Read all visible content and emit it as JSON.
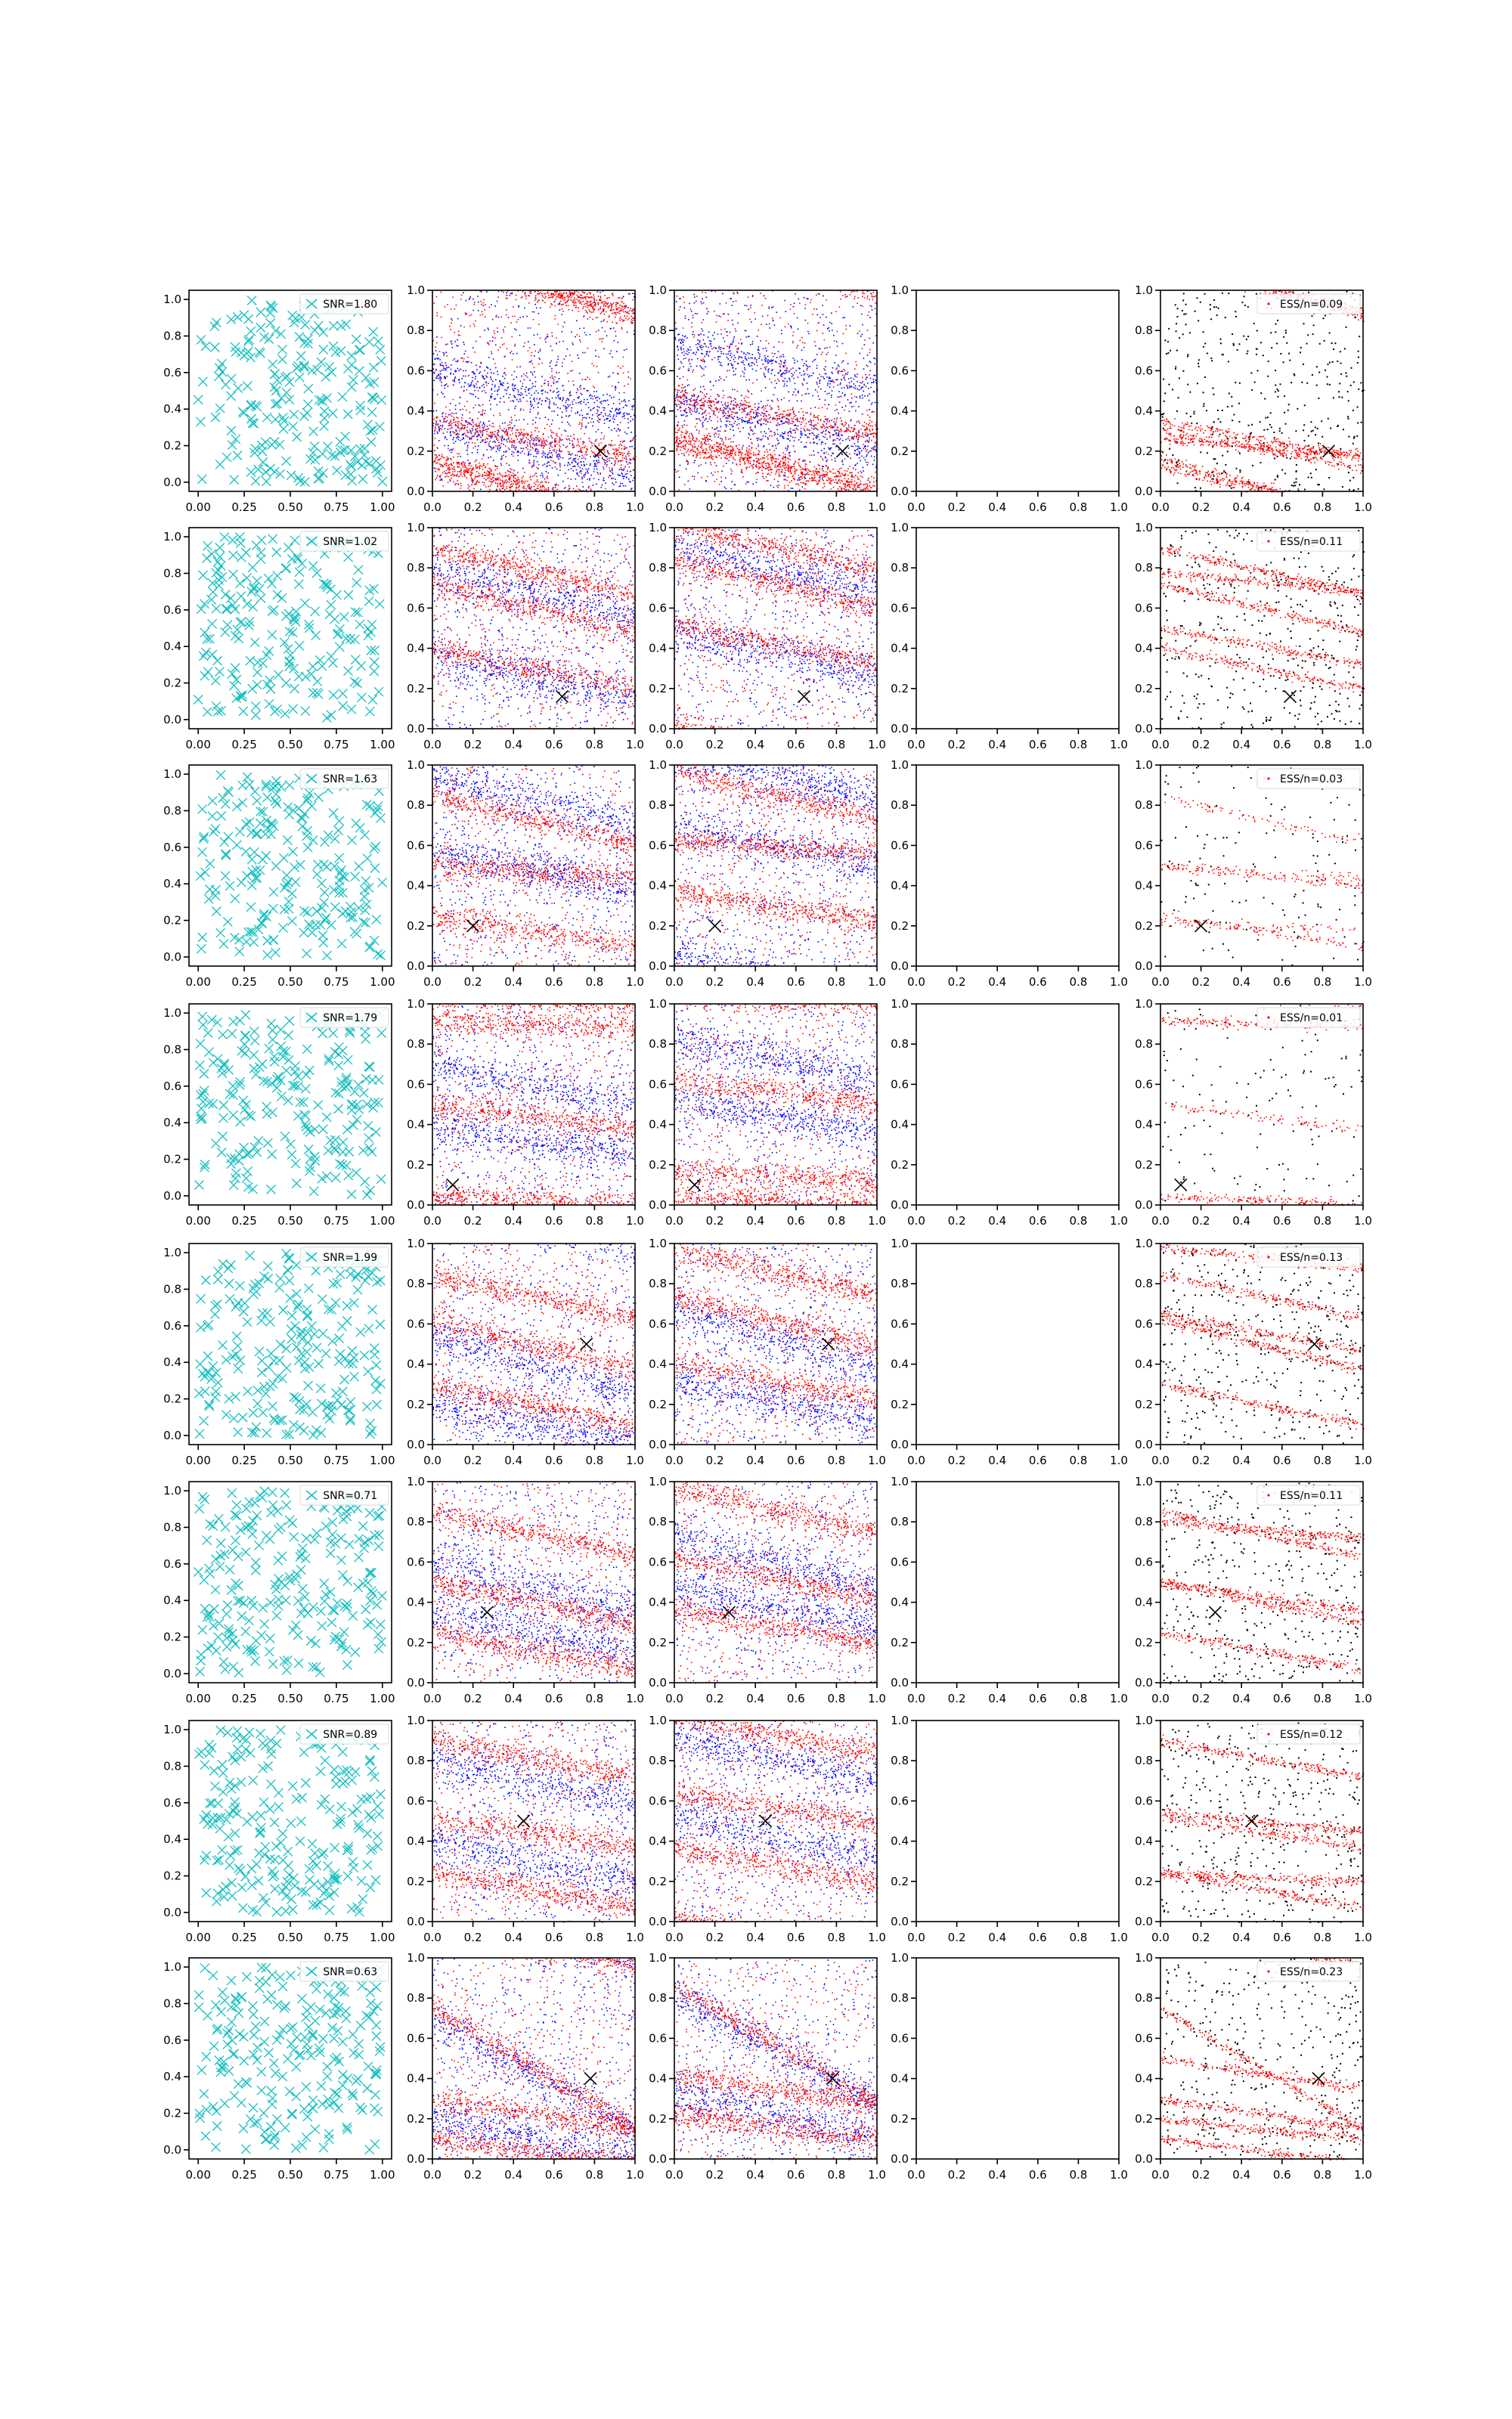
{
  "colors": {
    "cyan": "#17bfbf",
    "red": "#ff0000",
    "blue": "#0000ff",
    "black": "#000000",
    "frame": "#000000"
  },
  "tick_labels": {
    "col1": [
      "0.00",
      "0.25",
      "0.50",
      "0.75",
      "1.00"
    ],
    "unit": [
      "0.0",
      "0.2",
      "0.4",
      "0.6",
      "0.8",
      "1.0"
    ]
  },
  "chart_data": [
    {
      "type": "scatter",
      "panels_in_row": 5,
      "xlim": [
        0,
        1
      ],
      "ylim": [
        0,
        1
      ],
      "snr_legend": "SNR=1.80",
      "ess_legend": "ESS/n=0.09",
      "target": [
        0.83,
        0.2
      ],
      "red_streaks": [
        [
          0.17,
          0.3,
          1.0,
          1.0
        ],
        [
          0.12,
          0.22,
          1.0,
          0.8
        ],
        [
          0.35,
          0.18,
          1.0,
          1.0
        ]
      ],
      "blue_streaks": [
        [
          0.33,
          0.26,
          1.0,
          0.8
        ],
        [
          0.62,
          0.25,
          1.0,
          0.5
        ]
      ],
      "ess_streaks": [
        [
          0.3,
          0.18,
          1.0,
          1.0
        ],
        [
          0.26,
          0.08,
          1.0,
          0.6
        ]
      ]
    },
    {
      "type": "scatter",
      "panels_in_row": 5,
      "xlim": [
        0,
        1
      ],
      "ylim": [
        0,
        1
      ],
      "snr_legend": "SNR=1.02",
      "ess_legend": "ESS/n=0.11",
      "target": [
        0.64,
        0.16
      ],
      "red_streaks": [
        [
          0.9,
          0.23,
          1.0,
          1.0
        ],
        [
          0.72,
          0.24,
          1.0,
          0.8
        ],
        [
          0.4,
          0.2,
          1.0,
          0.9
        ]
      ],
      "blue_streaks": [
        [
          0.78,
          0.22,
          1.0,
          0.8
        ],
        [
          0.35,
          0.19,
          1.0,
          0.6
        ]
      ],
      "ess_streaks": [
        [
          0.78,
          0.1,
          1.0,
          1.0
        ],
        [
          0.5,
          0.18,
          1.0,
          0.6
        ]
      ]
    },
    {
      "type": "scatter",
      "panels_in_row": 5,
      "xlim": [
        0,
        1
      ],
      "ylim": [
        0,
        1
      ],
      "snr_legend": "SNR=1.63",
      "ess_legend": "ESS/n=0.03",
      "target": [
        0.2,
        0.2
      ],
      "red_streaks": [
        [
          0.25,
          0.15,
          1.0,
          1.0
        ],
        [
          0.5,
          0.06,
          1.0,
          1.0
        ],
        [
          0.85,
          0.24,
          1.0,
          0.8
        ]
      ],
      "blue_streaks": [
        [
          0.95,
          0.25,
          1.0,
          0.8
        ],
        [
          0.58,
          0.2,
          1.0,
          0.6
        ]
      ],
      "ess_streaks": [
        [
          0.22,
          0.04,
          1.0,
          1.0
        ],
        [
          0.5,
          0.1,
          1.0,
          0.6
        ]
      ]
    },
    {
      "type": "scatter",
      "panels_in_row": 5,
      "xlim": [
        0,
        1
      ],
      "ylim": [
        0,
        1
      ],
      "snr_legend": "SNR=1.79",
      "ess_legend": "ESS/n=0.01",
      "target": [
        0.1,
        0.1
      ],
      "red_streaks": [
        [
          0.92,
          0.04,
          1.0,
          1.0
        ],
        [
          0.05,
          0.05,
          1.0,
          1.0
        ],
        [
          0.5,
          0.12,
          1.0,
          0.8
        ]
      ],
      "blue_streaks": [
        [
          0.7,
          0.2,
          1.0,
          0.8
        ],
        [
          0.4,
          0.15,
          1.0,
          0.6
        ]
      ],
      "ess_streaks": [
        [
          0.92,
          0.02,
          1.0,
          1.0
        ],
        [
          0.04,
          0.03,
          1.0,
          1.0
        ]
      ]
    },
    {
      "type": "scatter",
      "panels_in_row": 5,
      "xlim": [
        0,
        1
      ],
      "ylim": [
        0,
        1
      ],
      "snr_legend": "SNR=1.99",
      "ess_legend": "ESS/n=0.13",
      "target": [
        0.76,
        0.5
      ],
      "red_streaks": [
        [
          0.62,
          0.25,
          1.0,
          1.0
        ],
        [
          0.3,
          0.2,
          1.0,
          0.8
        ],
        [
          0.85,
          0.22,
          1.0,
          0.8
        ]
      ],
      "blue_streaks": [
        [
          0.55,
          0.3,
          1.0,
          0.8
        ],
        [
          0.2,
          0.2,
          1.0,
          0.6
        ]
      ],
      "ess_streaks": [
        [
          0.65,
          0.18,
          1.0,
          1.0
        ],
        [
          0.98,
          0.1,
          1.0,
          0.8
        ]
      ]
    },
    {
      "type": "scatter",
      "panels_in_row": 5,
      "xlim": [
        0,
        1
      ],
      "ylim": [
        0,
        1
      ],
      "snr_legend": "SNR=0.71",
      "ess_legend": "ESS/n=0.11",
      "target": [
        0.27,
        0.35
      ],
      "red_streaks": [
        [
          0.5,
          0.2,
          1.0,
          1.0
        ],
        [
          0.85,
          0.22,
          1.0,
          0.8
        ],
        [
          0.25,
          0.18,
          1.0,
          0.8
        ]
      ],
      "blue_streaks": [
        [
          0.6,
          0.25,
          1.0,
          0.8
        ],
        [
          0.35,
          0.2,
          1.0,
          0.6
        ]
      ],
      "ess_streaks": [
        [
          0.8,
          0.08,
          1.0,
          1.0
        ],
        [
          0.5,
          0.14,
          1.0,
          0.6
        ]
      ]
    },
    {
      "type": "scatter",
      "panels_in_row": 5,
      "xlim": [
        0,
        1
      ],
      "ylim": [
        0,
        1
      ],
      "snr_legend": "SNR=0.89",
      "ess_legend": "ESS/n=0.12",
      "target": [
        0.45,
        0.5
      ],
      "red_streaks": [
        [
          0.9,
          0.18,
          1.0,
          1.0
        ],
        [
          0.52,
          0.15,
          1.0,
          0.8
        ],
        [
          0.25,
          0.18,
          1.0,
          0.8
        ]
      ],
      "blue_streaks": [
        [
          0.8,
          0.22,
          1.0,
          0.8
        ],
        [
          0.4,
          0.2,
          1.0,
          0.6
        ]
      ],
      "ess_streaks": [
        [
          0.24,
          0.04,
          1.0,
          1.0
        ],
        [
          0.55,
          0.1,
          1.0,
          0.6
        ]
      ]
    },
    {
      "type": "scatter",
      "panels_in_row": 5,
      "xlim": [
        0,
        1
      ],
      "ylim": [
        0,
        1
      ],
      "snr_legend": "SNR=0.63",
      "ess_legend": "ESS/n=0.23",
      "target": [
        0.78,
        0.4
      ],
      "red_streaks": [
        [
          0.75,
          0.6,
          1.0,
          1.0
        ],
        [
          0.3,
          0.15,
          1.0,
          0.8
        ],
        [
          0.1,
          0.12,
          1.0,
          0.8
        ]
      ],
      "blue_streaks": [
        [
          0.7,
          0.55,
          1.0,
          0.8
        ],
        [
          0.2,
          0.2,
          1.0,
          0.6
        ]
      ],
      "ess_streaks": [
        [
          0.5,
          0.15,
          1.0,
          1.0
        ],
        [
          0.2,
          0.1,
          1.0,
          0.6
        ]
      ]
    }
  ]
}
